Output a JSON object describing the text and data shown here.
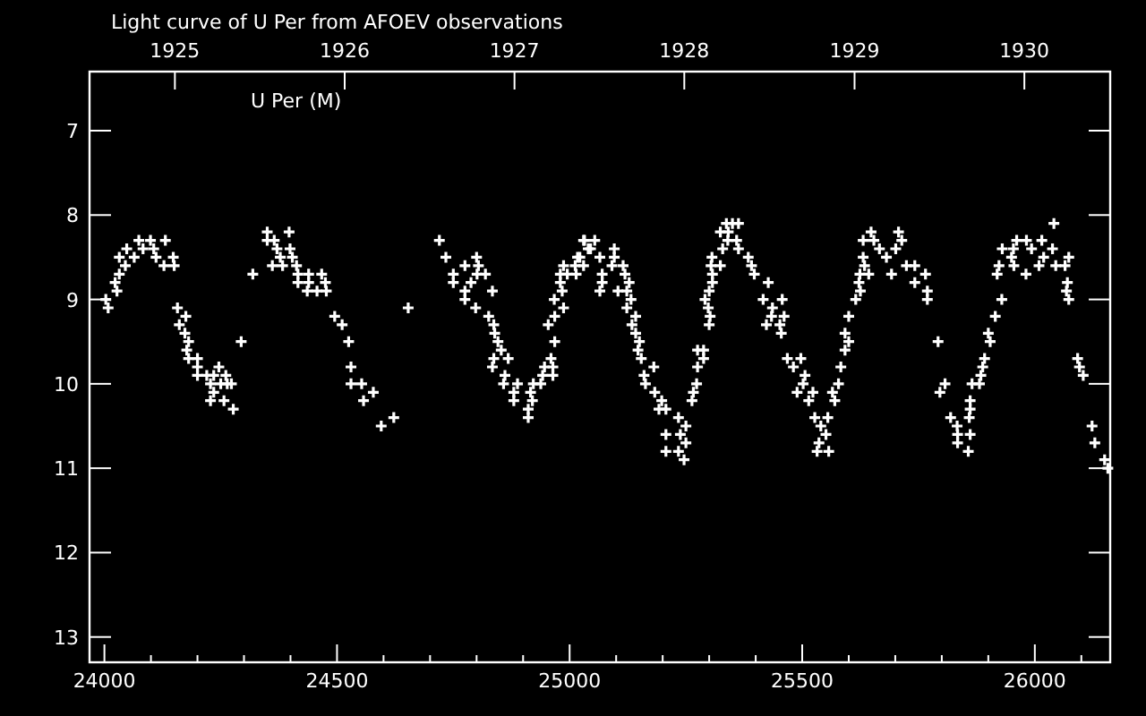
{
  "chart_data": {
    "type": "scatter",
    "title": "Light curve of U Per from AFOEV observations",
    "annotations": [
      "U Per (M)"
    ],
    "color": "#ffffff",
    "marker": "cross",
    "xlim": [
      23968,
      26162
    ],
    "xticks": [
      24000,
      {
        "value": 24100,
        "label": null
      },
      {
        "value": 24200,
        "label": null
      },
      {
        "value": 24300,
        "label": null
      },
      {
        "value": 24400,
        "label": null
      },
      24500,
      {
        "value": 24600,
        "label": null
      },
      {
        "value": 24700,
        "label": null
      },
      {
        "value": 24800,
        "label": null
      },
      {
        "value": 24900,
        "label": null
      },
      25000,
      {
        "value": 25100,
        "label": null
      },
      {
        "value": 25200,
        "label": null
      },
      {
        "value": 25300,
        "label": null
      },
      {
        "value": 25400,
        "label": null
      },
      25500,
      {
        "value": 25600,
        "label": null
      },
      {
        "value": 25700,
        "label": null
      },
      {
        "value": 25800,
        "label": null
      },
      {
        "value": 25900,
        "label": null
      },
      26000,
      {
        "value": 26100,
        "label": null
      }
    ],
    "x2lim": [
      "1924-07-01T12:00",
      "1930-07-04T12:00"
    ],
    "x2ticks": [
      "1925",
      "1926",
      "1927",
      "1928",
      "1929",
      "1930"
    ],
    "ylim": [
      13.3,
      6.3
    ],
    "yticks": [
      7,
      8,
      9,
      10,
      11,
      12,
      13
    ],
    "x": [
      24003,
      24008,
      24023,
      24027,
      24032,
      24032,
      24045,
      24048,
      24064,
      24074,
      24083,
      24099,
      24106,
      24111,
      24131,
      24128,
      24150,
      24148,
      24157,
      24161,
      24175,
      24173,
      24181,
      24177,
      24181,
      24200,
      24200,
      24200,
      24220,
      24235,
      24246,
      24228,
      24235,
      24228,
      24257,
      24250,
      24264,
      24273,
      24261,
      24277,
      24294,
      24319,
      24350,
      24350,
      24365,
      24397,
      24371,
      24378,
      24361,
      24383,
      24404,
      24399,
      24413,
      24416,
      24416,
      24439,
      24439,
      24467,
      24475,
      24436,
      24457,
      24477,
      24495,
      24511,
      24525,
      24530,
      24530,
      24553,
      24557,
      24578,
      24595,
      24622,
      24653,
      24720,
      24734,
      24750,
      24750,
      24775,
      24775,
      24775,
      24788,
      24800,
      24804,
      24801,
      24819,
      24834,
      24798,
      24826,
      24837,
      24839,
      24846,
      24853,
      24837,
      24868,
      24834,
      24861,
      24858,
      24888,
      24880,
      24880,
      24911,
      24911,
      24916,
      24920,
      24922,
      24938,
      24942,
      24946,
      24964,
      24964,
      24960,
      24968,
      24954,
      24968,
      24967,
      24987,
      24984,
      24980,
      24980,
      24995,
      24987,
      25014,
      25012,
      25017,
      25030,
      25030,
      25040,
      25032,
      25054,
      25045,
      25022,
      25065,
      25096,
      25096,
      25091,
      25115,
      25070,
      25119,
      25128,
      25070,
      25065,
      25104,
      25123,
      25132,
      25123,
      25142,
      25134,
      25142,
      25150,
      25147,
      25154,
      25181,
      25160,
      25163,
      25183,
      25198,
      25192,
      25207,
      25234,
      25250,
      25207,
      25238,
      25250,
      25207,
      25234,
      25246,
      25263,
      25266,
      25273,
      25275,
      25288,
      25275,
      25288,
      25300,
      25302,
      25298,
      25291,
      25300,
      25307,
      25307,
      25304,
      25324,
      25306,
      25329,
      25324,
      25341,
      25340,
      25350,
      25337,
      25363,
      25359,
      25363,
      25384,
      25391,
      25397,
      25427,
      25416,
      25457,
      25436,
      25434,
      25461,
      25423,
      25452,
      25455,
      25468,
      25497,
      25481,
      25506,
      25502,
      25489,
      25523,
      25514,
      25527,
      25555,
      25540,
      25551,
      25536,
      25532,
      25557,
      25565,
      25570,
      25578,
      25583,
      25592,
      25600,
      25592,
      25600,
      25615,
      25625,
      25622,
      25624,
      25643,
      25634,
      25631,
      25631,
      25648,
      25654,
      25666,
      25681,
      25692,
      25701,
      25707,
      25714,
      25724,
      25742,
      25742,
      25765,
      25769,
      25769,
      25792,
      25796,
      25807,
      25819,
      25833,
      25834,
      25834,
      25857,
      25861,
      25859,
      25861,
      25861,
      25865,
      25881,
      25884,
      25888,
      25892,
      25904,
      25900,
      25915,
      25929,
      25919,
      25923,
      25930,
      25950,
      25954,
      25961,
      25982,
      25955,
      25981,
      25993,
      26009,
      26015,
      26019,
      26038,
      26041,
      26045,
      26073,
      26065,
      26070,
      26068,
      26073,
      26092,
      26096,
      26104,
      26123,
      26129,
      26150,
      26157
    ],
    "values": [
      9.0,
      9.1,
      8.8,
      8.9,
      8.7,
      8.5,
      8.6,
      8.4,
      8.5,
      8.3,
      8.4,
      8.3,
      8.4,
      8.5,
      8.3,
      8.6,
      8.6,
      8.5,
      9.1,
      9.3,
      9.2,
      9.4,
      9.5,
      9.6,
      9.7,
      9.7,
      9.8,
      9.9,
      9.9,
      9.9,
      9.8,
      10.0,
      10.1,
      10.2,
      10.2,
      10.0,
      10.0,
      10.0,
      9.9,
      10.3,
      9.5,
      8.7,
      8.2,
      8.3,
      8.3,
      8.2,
      8.4,
      8.5,
      8.6,
      8.6,
      8.5,
      8.4,
      8.6,
      8.7,
      8.8,
      8.7,
      8.8,
      8.7,
      8.8,
      8.9,
      8.9,
      8.9,
      9.2,
      9.3,
      9.5,
      9.8,
      10.0,
      10.0,
      10.2,
      10.1,
      10.5,
      10.4,
      9.1,
      8.3,
      8.5,
      8.7,
      8.8,
      8.6,
      8.9,
      9.0,
      8.8,
      8.5,
      8.6,
      8.7,
      8.7,
      8.9,
      9.1,
      9.2,
      9.3,
      9.4,
      9.5,
      9.6,
      9.7,
      9.7,
      9.8,
      9.9,
      10.0,
      10.0,
      10.1,
      10.2,
      10.3,
      10.4,
      10.1,
      10.2,
      10.0,
      10.0,
      9.9,
      9.8,
      9.8,
      9.9,
      9.7,
      9.5,
      9.3,
      9.2,
      9.0,
      9.1,
      8.9,
      8.8,
      8.7,
      8.7,
      8.6,
      8.7,
      8.6,
      8.5,
      8.6,
      8.3,
      8.4,
      8.3,
      8.3,
      8.4,
      8.5,
      8.5,
      8.4,
      8.5,
      8.6,
      8.6,
      8.7,
      8.7,
      8.8,
      8.8,
      8.9,
      8.9,
      8.9,
      9.0,
      9.1,
      9.2,
      9.3,
      9.4,
      9.5,
      9.6,
      9.7,
      9.8,
      9.9,
      10.0,
      10.1,
      10.2,
      10.3,
      10.3,
      10.4,
      10.5,
      10.6,
      10.6,
      10.7,
      10.8,
      10.8,
      10.9,
      10.2,
      10.1,
      10.0,
      9.8,
      9.7,
      9.6,
      9.6,
      9.3,
      9.2,
      9.1,
      9.0,
      8.9,
      8.8,
      8.7,
      8.6,
      8.6,
      8.5,
      8.4,
      8.2,
      8.2,
      8.3,
      8.1,
      8.1,
      8.1,
      8.3,
      8.4,
      8.5,
      8.6,
      8.7,
      8.8,
      9.0,
      9.0,
      9.1,
      9.2,
      9.2,
      9.3,
      9.3,
      9.4,
      9.7,
      9.7,
      9.8,
      9.9,
      10.0,
      10.1,
      10.1,
      10.2,
      10.4,
      10.4,
      10.5,
      10.6,
      10.7,
      10.8,
      10.8,
      10.1,
      10.2,
      10.0,
      9.8,
      9.6,
      9.5,
      9.4,
      9.2,
      9.0,
      8.9,
      8.8,
      8.7,
      8.7,
      8.6,
      8.5,
      8.3,
      8.2,
      8.3,
      8.4,
      8.5,
      8.7,
      8.4,
      8.2,
      8.3,
      8.6,
      8.6,
      8.8,
      8.7,
      8.9,
      9.0,
      9.5,
      10.1,
      10.0,
      10.4,
      10.5,
      10.6,
      10.7,
      10.8,
      10.6,
      10.4,
      10.3,
      10.2,
      10.0,
      10.0,
      9.9,
      9.8,
      9.7,
      9.5,
      9.4,
      9.2,
      9.0,
      8.7,
      8.6,
      8.4,
      8.5,
      8.4,
      8.3,
      8.3,
      8.6,
      8.7,
      8.4,
      8.6,
      8.3,
      8.5,
      8.4,
      8.1,
      8.6,
      8.5,
      8.6,
      8.8,
      8.9,
      9.0,
      9.7,
      9.8,
      9.9,
      10.5,
      10.7,
      10.9,
      11.0
    ]
  }
}
